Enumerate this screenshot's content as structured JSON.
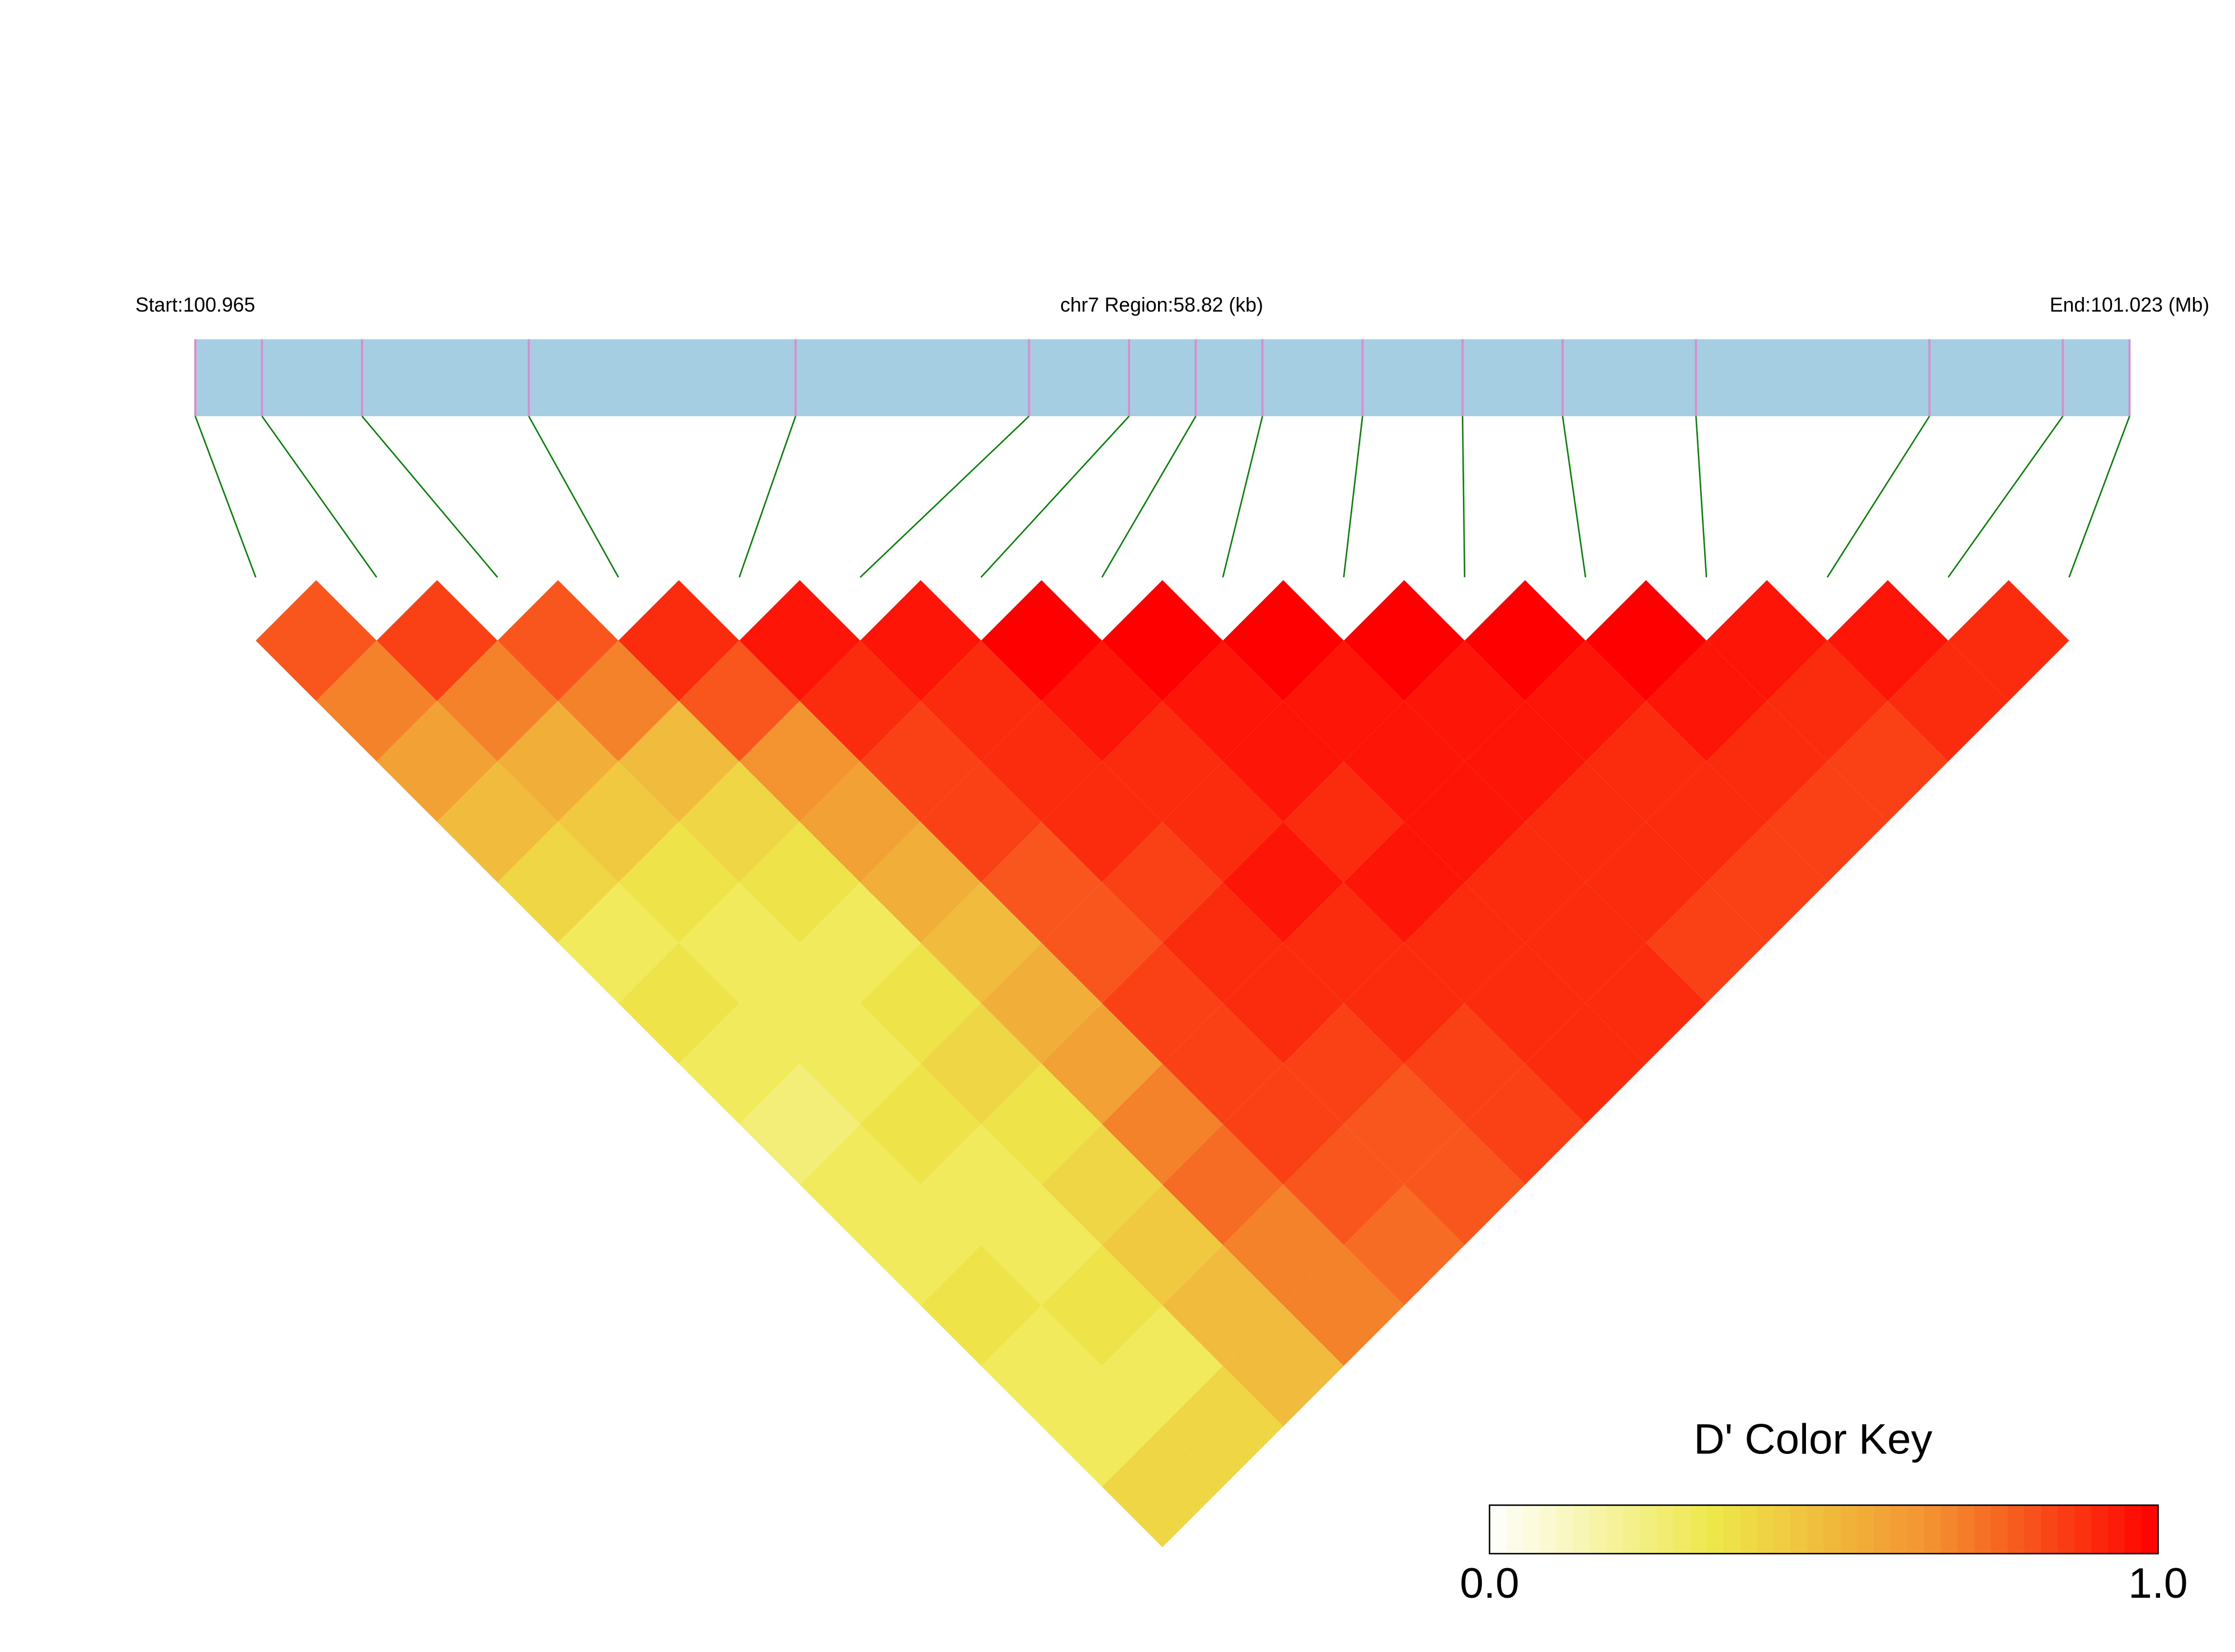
{
  "chart_data": {
    "type": "ld-heatmap",
    "start_label": "Start:100.965",
    "region_label": "chr7 Region:58.82 (kb)",
    "end_label": "End:101.023 (Mb)",
    "xlim": [
      100.965,
      101.023
    ],
    "snp_positions": [
      100.965,
      100.967,
      100.97,
      100.975,
      100.983,
      100.99,
      100.993,
      100.995,
      100.997,
      101.0,
      101.003,
      101.006,
      101.01,
      101.017,
      101.021,
      101.023
    ],
    "dprime": [
      [
        0.8,
        0.7,
        0.6,
        0.5,
        0.4,
        0.3,
        0.35,
        0.3,
        0.25,
        0.3,
        0.3,
        0.35,
        0.3,
        0.3,
        0.4
      ],
      [
        0.85,
        0.7,
        0.55,
        0.45,
        0.35,
        0.3,
        0.3,
        0.3,
        0.35,
        0.3,
        0.3,
        0.35,
        0.3,
        0.4
      ],
      [
        0.8,
        0.7,
        0.5,
        0.4,
        0.35,
        0.3,
        0.35,
        0.4,
        0.35,
        0.4,
        0.45,
        0.5,
        0.5
      ],
      [
        0.9,
        0.8,
        0.65,
        0.6,
        0.55,
        0.5,
        0.55,
        0.6,
        0.7,
        0.75,
        0.7,
        0.7
      ],
      [
        0.95,
        0.9,
        0.85,
        0.85,
        0.8,
        0.8,
        0.85,
        0.85,
        0.85,
        0.8,
        0.75
      ],
      [
        0.95,
        0.9,
        0.9,
        0.9,
        0.85,
        0.9,
        0.9,
        0.85,
        0.8,
        0.8
      ],
      [
        1.0,
        0.95,
        0.9,
        0.9,
        0.95,
        0.9,
        0.9,
        0.85,
        0.85
      ],
      [
        1.0,
        0.95,
        0.95,
        0.9,
        0.95,
        0.9,
        0.9,
        0.9
      ],
      [
        1.0,
        0.95,
        0.95,
        0.95,
        0.9,
        0.9,
        0.9
      ],
      [
        1.0,
        0.95,
        0.95,
        0.9,
        0.9,
        0.85
      ],
      [
        1.0,
        0.95,
        0.9,
        0.9,
        0.85
      ],
      [
        1.0,
        0.95,
        0.9,
        0.85
      ],
      [
        0.95,
        0.9,
        0.85
      ],
      [
        0.95,
        0.9
      ],
      [
        0.9
      ]
    ],
    "key_title": "D' Color Key",
    "key_lim": [
      0,
      1
    ],
    "key_ticks": [
      {
        "value": 0,
        "label": "0.0"
      },
      {
        "value": 1,
        "label": "1.0"
      }
    ],
    "colors": [
      "#ffffff",
      "#eee84a",
      "#f39030",
      "#ff0000"
    ]
  }
}
